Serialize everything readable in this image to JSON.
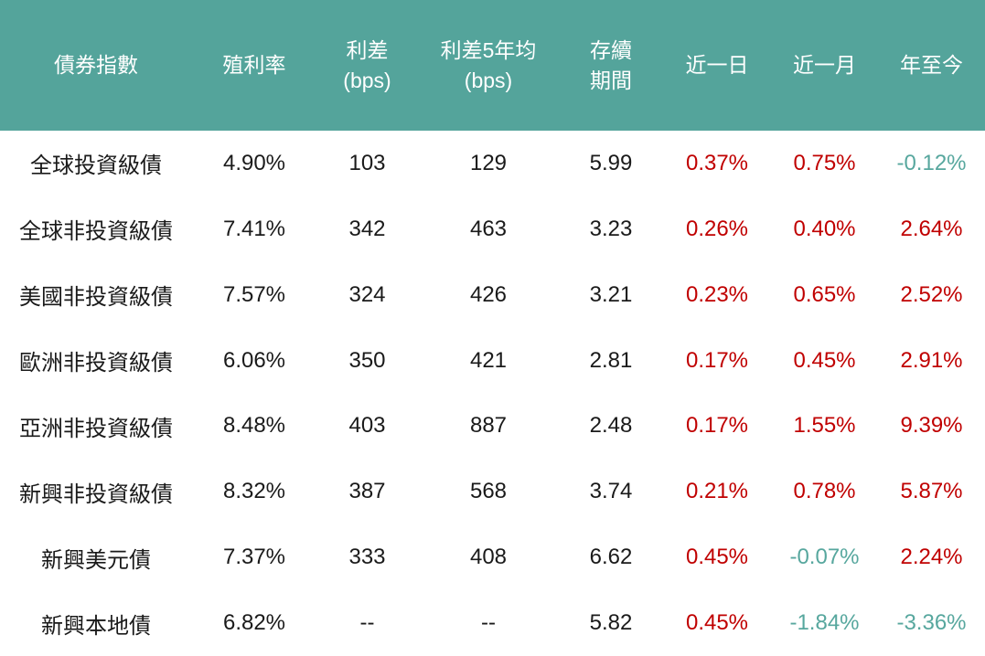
{
  "colors": {
    "header_bg": "#54a49b",
    "header_text": "#ffffff",
    "body_text": "#1a1a1a",
    "positive_return": "#c00000",
    "negative_return": "#57a79e"
  },
  "table": {
    "columns": [
      {
        "id": "name",
        "label_lines": [
          "債券指數"
        ]
      },
      {
        "id": "yield",
        "label_lines": [
          "殖利率"
        ]
      },
      {
        "id": "spread",
        "label_lines": [
          "利差",
          "(bps)"
        ]
      },
      {
        "id": "spread_5y",
        "label_lines": [
          "利差5年均",
          "(bps)"
        ]
      },
      {
        "id": "duration",
        "label_lines": [
          "存續",
          "期間"
        ]
      },
      {
        "id": "return_1d",
        "label_lines": [
          "近一日"
        ]
      },
      {
        "id": "return_1m",
        "label_lines": [
          "近一月"
        ]
      },
      {
        "id": "return_ytd",
        "label_lines": [
          "年至今"
        ]
      }
    ],
    "return_column_start_index": 5
  },
  "chart_data": {
    "type": "table",
    "title": "",
    "columns": [
      "債券指數",
      "殖利率",
      "利差(bps)",
      "利差5年均(bps)",
      "存續期間",
      "近一日",
      "近一月",
      "年至今"
    ],
    "rows": [
      [
        "全球投資級債",
        "4.90%",
        "103",
        "129",
        "5.99",
        "0.37%",
        "0.75%",
        "-0.12%"
      ],
      [
        "全球非投資級債",
        "7.41%",
        "342",
        "463",
        "3.23",
        "0.26%",
        "0.40%",
        "2.64%"
      ],
      [
        "美國非投資級債",
        "7.57%",
        "324",
        "426",
        "3.21",
        "0.23%",
        "0.65%",
        "2.52%"
      ],
      [
        "歐洲非投資級債",
        "6.06%",
        "350",
        "421",
        "2.81",
        "0.17%",
        "0.45%",
        "2.91%"
      ],
      [
        "亞洲非投資級債",
        "8.48%",
        "403",
        "887",
        "2.48",
        "0.17%",
        "1.55%",
        "9.39%"
      ],
      [
        "新興非投資級債",
        "8.32%",
        "387",
        "568",
        "3.74",
        "0.21%",
        "0.78%",
        "5.87%"
      ],
      [
        "新興美元債",
        "7.37%",
        "333",
        "408",
        "6.62",
        "0.45%",
        "-0.07%",
        "2.24%"
      ],
      [
        "新興本地債",
        "6.82%",
        "--",
        "--",
        "5.82",
        "0.45%",
        "-1.84%",
        "-3.36%"
      ]
    ],
    "value_color_rule": "return columns (近一日/近一月/年至今): values starting with '-' are teal (#57a79e), others red (#c00000); remaining columns black"
  }
}
